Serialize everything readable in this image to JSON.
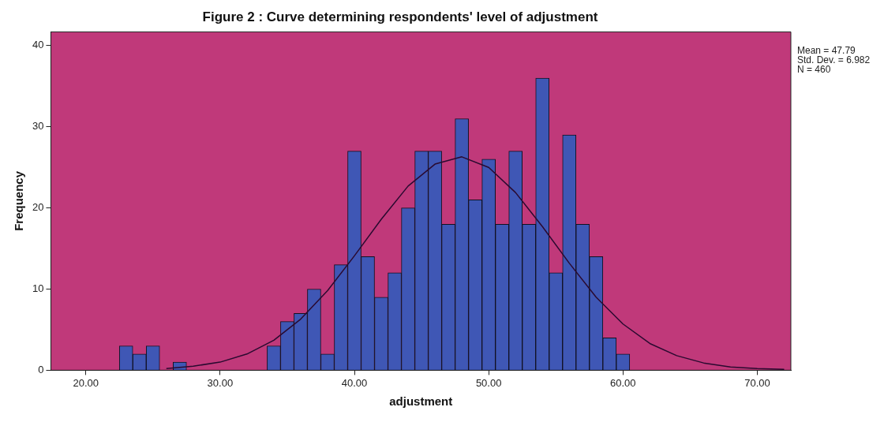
{
  "chart_data": {
    "type": "histogram",
    "title": "Figure 2 : Curve determining respondents' level of adjustment",
    "xlabel": "adjustment",
    "ylabel": "Frequency",
    "bins": [
      22.5,
      23.5,
      24.5,
      25.5,
      26.5,
      27.5,
      28.5,
      29.5,
      30.5,
      31.5,
      32.5,
      33.5,
      34.5,
      35.5,
      36.5,
      37.5,
      38.5,
      39.5,
      40.5,
      41.5,
      42.5,
      43.5,
      44.5,
      45.5,
      46.5,
      47.5,
      48.5,
      49.5,
      50.5,
      51.5,
      52.5,
      53.5,
      54.5,
      55.5,
      56.5,
      57.5,
      58.5,
      59.5,
      60.5
    ],
    "values": [
      3,
      2,
      3,
      0,
      1,
      0,
      0,
      0,
      0,
      0,
      0,
      3,
      6,
      7,
      10,
      2,
      13,
      27,
      14,
      9,
      12,
      20,
      27,
      27,
      18,
      31,
      21,
      26,
      18,
      27,
      18,
      36,
      12,
      29,
      18,
      14,
      4,
      2
    ],
    "color": "#3f57b5",
    "series": [
      {
        "type": "line",
        "color": "#2a0a30",
        "x": [
          26,
          28,
          30,
          32,
          34,
          36,
          38,
          40,
          42,
          44,
          46,
          48,
          50,
          52,
          54,
          56,
          58,
          60,
          62,
          64,
          66,
          68,
          70,
          72
        ],
        "values": [
          0.2,
          0.5,
          1.0,
          2.0,
          3.7,
          6.3,
          9.8,
          14.1,
          18.6,
          22.7,
          25.4,
          26.3,
          25.0,
          21.9,
          17.7,
          13.2,
          9.0,
          5.7,
          3.3,
          1.8,
          0.9,
          0.4,
          0.2,
          0.1
        ]
      }
    ],
    "xlim": [
      17.4,
      72.5
    ],
    "xticks": [
      {
        "value": 20,
        "label": "20.00"
      },
      {
        "value": 30,
        "label": "30.00"
      },
      {
        "value": 40,
        "label": "40.00"
      },
      {
        "value": 50,
        "label": "50.00"
      },
      {
        "value": 60,
        "label": "60.00"
      },
      {
        "value": 70,
        "label": "70.00"
      }
    ],
    "ylim": [
      0,
      41.7
    ],
    "yticks": [
      0,
      10,
      20,
      30,
      40
    ],
    "grid": false,
    "legend": false,
    "marker": "none",
    "annotations": [
      "Mean = 47.79",
      "Std. Dev. = 6.982",
      "N = 460"
    ]
  }
}
